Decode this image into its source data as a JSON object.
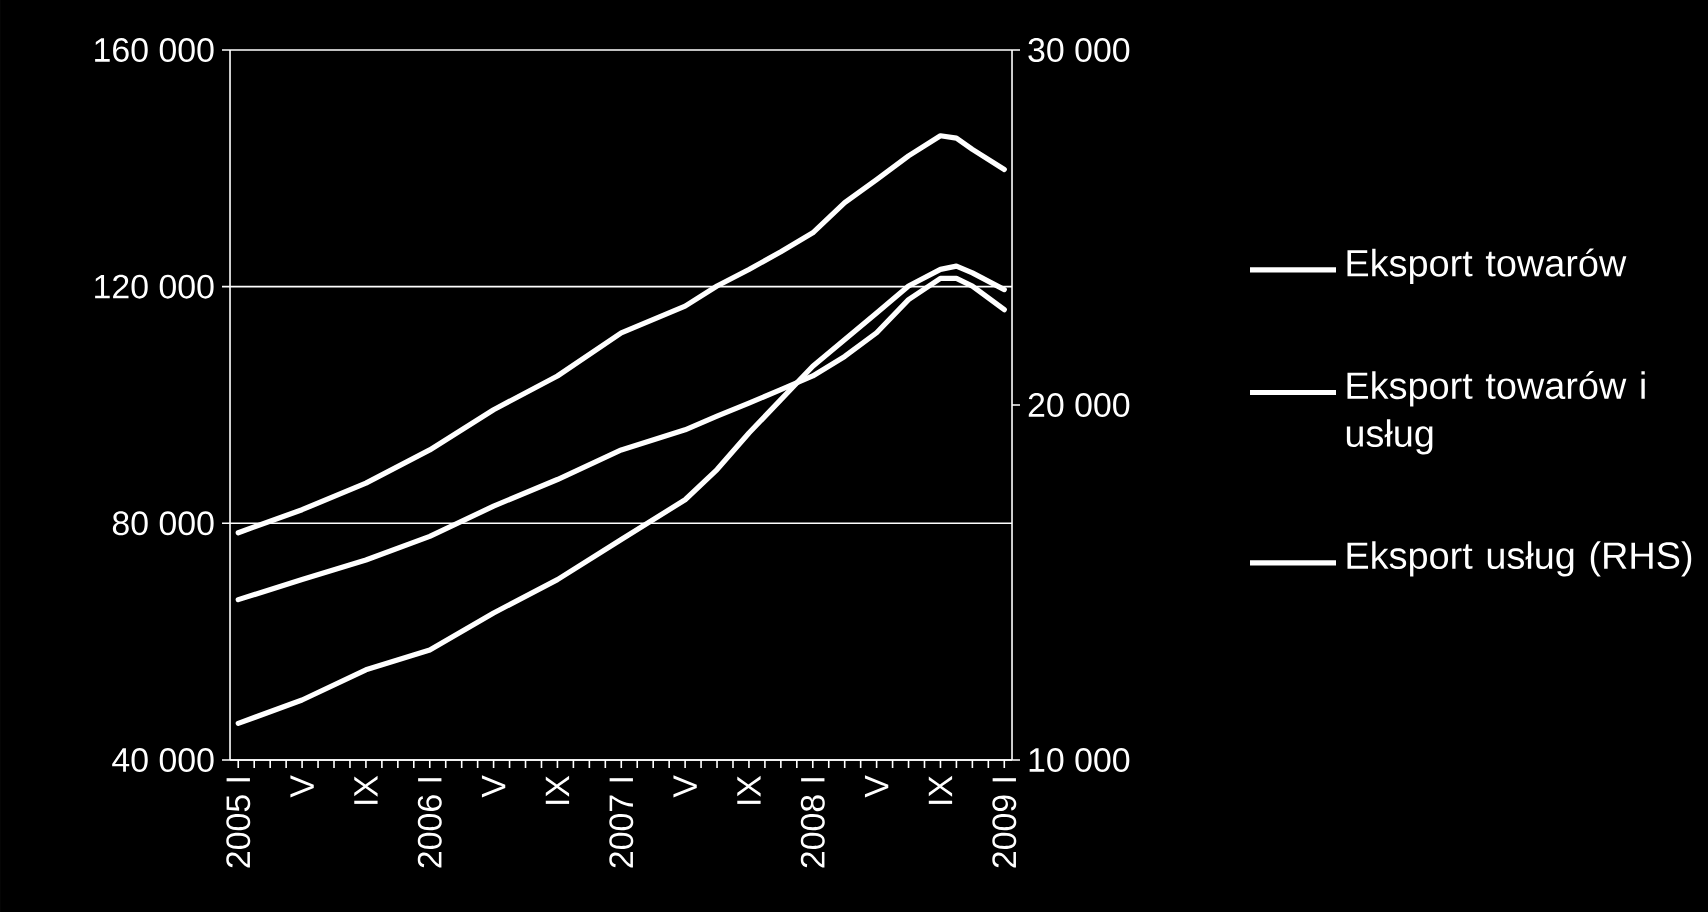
{
  "chart_data": {
    "type": "line",
    "x": [
      "2005-01",
      "2005-05",
      "2005-09",
      "2006-01",
      "2006-05",
      "2006-09",
      "2007-01",
      "2007-05",
      "2007-07",
      "2007-09",
      "2007-11",
      "2008-01",
      "2008-03",
      "2008-05",
      "2008-07",
      "2008-09",
      "2008-10",
      "2008-11",
      "2009-01"
    ],
    "series": [
      {
        "name": "Eksport towarów",
        "color": "#ffffff",
        "values": [
          67100,
          70500,
          73800,
          77800,
          82900,
          87400,
          92400,
          95800,
          98100,
          100300,
          102600,
          104900,
          108200,
          112200,
          117800,
          121400,
          121400,
          120100,
          116100
        ]
      },
      {
        "name": "Eksport towarów i usług",
        "color": "#ffffff",
        "values": [
          78400,
          82300,
          86800,
          92400,
          99200,
          104900,
          112200,
          116700,
          120100,
          122900,
          125900,
          129100,
          134200,
          138100,
          142100,
          145500,
          145100,
          143200,
          139800
        ]
      },
      {
        "name": "Eksport usług (RHS)",
        "color": "#ffffff",
        "axis": "y2",
        "values": [
          11030,
          11690,
          12540,
          13100,
          14140,
          15080,
          16210,
          17330,
          18180,
          19210,
          20150,
          21090,
          21840,
          22590,
          23350,
          23820,
          23910,
          23720,
          23250
        ]
      }
    ],
    "xlim": [
      "2004-12-16",
      "2009-01-16"
    ],
    "xticks": [
      {
        "value": "2005-01",
        "label": "2005 I"
      },
      {
        "value": "2005-02",
        "label": null
      },
      {
        "value": "2005-03",
        "label": null
      },
      {
        "value": "2005-04",
        "label": null
      },
      {
        "value": "2005-05",
        "label": "V"
      },
      {
        "value": "2005-06",
        "label": null
      },
      {
        "value": "2005-07",
        "label": null
      },
      {
        "value": "2005-08",
        "label": null
      },
      {
        "value": "2005-09",
        "label": "IX"
      },
      {
        "value": "2005-10",
        "label": null
      },
      {
        "value": "2005-11",
        "label": null
      },
      {
        "value": "2005-12",
        "label": null
      },
      {
        "value": "2006-01",
        "label": "2006 I"
      },
      {
        "value": "2006-02",
        "label": null
      },
      {
        "value": "2006-03",
        "label": null
      },
      {
        "value": "2006-04",
        "label": null
      },
      {
        "value": "2006-05",
        "label": "V"
      },
      {
        "value": "2006-06",
        "label": null
      },
      {
        "value": "2006-07",
        "label": null
      },
      {
        "value": "2006-08",
        "label": null
      },
      {
        "value": "2006-09",
        "label": "IX"
      },
      {
        "value": "2006-10",
        "label": null
      },
      {
        "value": "2006-11",
        "label": null
      },
      {
        "value": "2006-12",
        "label": null
      },
      {
        "value": "2007-01",
        "label": "2007 I"
      },
      {
        "value": "2007-02",
        "label": null
      },
      {
        "value": "2007-03",
        "label": null
      },
      {
        "value": "2007-04",
        "label": null
      },
      {
        "value": "2007-05",
        "label": "V"
      },
      {
        "value": "2007-06",
        "label": null
      },
      {
        "value": "2007-07",
        "label": null
      },
      {
        "value": "2007-08",
        "label": null
      },
      {
        "value": "2007-09",
        "label": "IX"
      },
      {
        "value": "2007-10",
        "label": null
      },
      {
        "value": "2007-11",
        "label": null
      },
      {
        "value": "2007-12",
        "label": null
      },
      {
        "value": "2008-01",
        "label": "2008 I"
      },
      {
        "value": "2008-02",
        "label": null
      },
      {
        "value": "2008-03",
        "label": null
      },
      {
        "value": "2008-04",
        "label": null
      },
      {
        "value": "2008-05",
        "label": "V"
      },
      {
        "value": "2008-06",
        "label": null
      },
      {
        "value": "2008-07",
        "label": null
      },
      {
        "value": "2008-08",
        "label": null
      },
      {
        "value": "2008-09",
        "label": "IX"
      },
      {
        "value": "2008-10",
        "label": null
      },
      {
        "value": "2008-11",
        "label": null
      },
      {
        "value": "2008-12",
        "label": null
      },
      {
        "value": "2009-01",
        "label": "2009 I"
      }
    ],
    "ylim": [
      40000,
      160000
    ],
    "yticks": [
      {
        "value": 40000,
        "label": "40 000"
      },
      {
        "value": 80000,
        "label": "80 000"
      },
      {
        "value": 120000,
        "label": "120 000"
      },
      {
        "value": 160000,
        "label": "160 000"
      }
    ],
    "y2lim": [
      10000,
      30000
    ],
    "y2ticks": [
      {
        "value": 10000,
        "label": "10 000"
      },
      {
        "value": 20000,
        "label": "20 000"
      },
      {
        "value": 30000,
        "label": "30 000"
      }
    ],
    "grid": "y",
    "legend": "right"
  }
}
